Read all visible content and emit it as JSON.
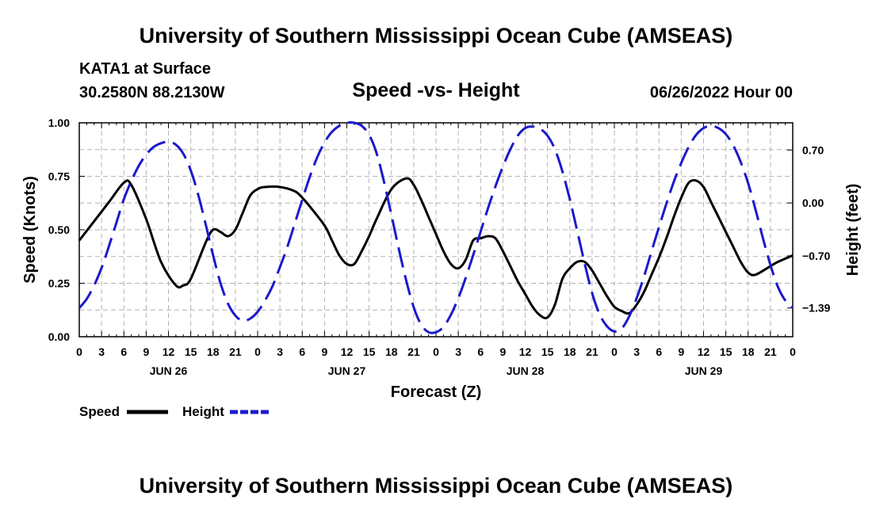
{
  "page": {
    "title_top": "University of Southern Mississippi Ocean Cube (AMSEAS)",
    "title_bottom": "University of Southern Mississippi Ocean Cube (AMSEAS)",
    "station": "KATA1 at Surface",
    "coords": "30.2580N  88.2130W",
    "datetime": "06/26/2022 Hour 00"
  },
  "chart_data": {
    "type": "line",
    "title": "Speed -vs- Height",
    "xlabel": "Forecast (Z)",
    "ylabel": "Speed (Knots)",
    "y2label": "Height (feet)",
    "x_unit": "hours from 06/26/2022 00Z",
    "xlim": [
      0,
      96
    ],
    "ylim": [
      0,
      1
    ],
    "y2lim": [
      -1.77,
      1.06
    ],
    "x_tick_values": [
      0,
      3,
      6,
      9,
      12,
      15,
      18,
      21,
      24,
      27,
      30,
      33,
      36,
      39,
      42,
      45,
      48,
      51,
      54,
      57,
      60,
      63,
      66,
      69,
      72,
      75,
      78,
      81,
      84,
      87,
      90,
      93,
      96
    ],
    "x_tick_labels": [
      "0",
      "3",
      "6",
      "9",
      "12",
      "15",
      "18",
      "21",
      "0",
      "3",
      "6",
      "9",
      "12",
      "15",
      "18",
      "21",
      "0",
      "3",
      "6",
      "9",
      "12",
      "15",
      "18",
      "21",
      "0",
      "3",
      "6",
      "9",
      "12",
      "15",
      "18",
      "21",
      "0"
    ],
    "date_labels": [
      {
        "x": 12,
        "label": "JUN 26"
      },
      {
        "x": 36,
        "label": "JUN 27"
      },
      {
        "x": 60,
        "label": "JUN 28"
      },
      {
        "x": 84,
        "label": "JUN 29"
      }
    ],
    "y_ticks": [
      0,
      0.25,
      0.5,
      0.75,
      1.0
    ],
    "y_tick_labels": [
      "0.00",
      "0.25",
      "0.50",
      "0.75",
      "1.00"
    ],
    "y2_ticks": [
      0.7,
      0.0,
      -0.7,
      -1.39
    ],
    "y2_tick_labels": [
      "0.70",
      "0.00",
      "−0.70",
      "−1.39"
    ],
    "grid": true,
    "legend_position": "bottom-left",
    "series": [
      {
        "name": "Speed",
        "axis": "left",
        "color": "#000000",
        "style": "solid",
        "x": [
          0,
          2,
          4,
          6,
          7,
          9,
          11,
          13,
          14,
          15,
          17,
          18,
          19,
          20,
          21,
          22,
          23,
          24,
          25,
          27,
          29,
          30,
          31,
          33,
          34,
          35,
          36,
          37,
          38,
          39,
          40,
          42,
          44,
          45,
          46,
          47,
          48,
          49,
          50,
          51,
          52,
          53,
          54,
          55,
          56,
          57,
          58,
          59,
          60,
          61,
          62,
          63,
          64,
          65,
          66,
          67,
          68,
          69,
          70,
          71,
          72,
          73,
          74,
          75,
          76,
          77,
          78,
          79,
          80,
          81,
          82,
          83,
          84,
          85,
          86,
          87,
          88,
          89,
          90,
          91,
          93,
          94,
          96
        ],
        "values": [
          0.45,
          0.54,
          0.63,
          0.72,
          0.71,
          0.55,
          0.35,
          0.24,
          0.24,
          0.27,
          0.44,
          0.5,
          0.49,
          0.47,
          0.5,
          0.58,
          0.66,
          0.69,
          0.7,
          0.7,
          0.68,
          0.65,
          0.61,
          0.52,
          0.45,
          0.38,
          0.34,
          0.34,
          0.4,
          0.47,
          0.55,
          0.69,
          0.74,
          0.71,
          0.64,
          0.56,
          0.48,
          0.4,
          0.34,
          0.32,
          0.36,
          0.45,
          0.46,
          0.47,
          0.46,
          0.4,
          0.33,
          0.26,
          0.2,
          0.14,
          0.1,
          0.09,
          0.15,
          0.27,
          0.32,
          0.35,
          0.35,
          0.31,
          0.25,
          0.19,
          0.14,
          0.12,
          0.11,
          0.15,
          0.21,
          0.29,
          0.37,
          0.46,
          0.56,
          0.65,
          0.72,
          0.73,
          0.7,
          0.63,
          0.56,
          0.49,
          0.42,
          0.35,
          0.3,
          0.29,
          0.33,
          0.35,
          0.38
        ]
      },
      {
        "name": "Height",
        "axis": "right",
        "color": "#1a1acc",
        "style": "dashed",
        "x": [
          0,
          1,
          2,
          3,
          4,
          5,
          6,
          7,
          8,
          9,
          10,
          11,
          12,
          13,
          14,
          15,
          16,
          17,
          18,
          19,
          20,
          21,
          22,
          23,
          24,
          25,
          26,
          27,
          28,
          29,
          30,
          31,
          32,
          33,
          34,
          35,
          36,
          37,
          38,
          39,
          40,
          41,
          42,
          43,
          44,
          45,
          46,
          47,
          48,
          49,
          50,
          51,
          52,
          53,
          54,
          55,
          56,
          57,
          58,
          59,
          60,
          61,
          62,
          63,
          64,
          65,
          66,
          67,
          68,
          69,
          70,
          71,
          72,
          73,
          74,
          75,
          76,
          77,
          78,
          79,
          80,
          81,
          82,
          83,
          84,
          85,
          86,
          87,
          88,
          89,
          90,
          91,
          92,
          93,
          94,
          95,
          96
        ],
        "values": [
          -1.39,
          -1.27,
          -1.09,
          -0.86,
          -0.57,
          -0.26,
          0.05,
          0.29,
          0.49,
          0.64,
          0.74,
          0.79,
          0.81,
          0.77,
          0.65,
          0.43,
          0.11,
          -0.28,
          -0.69,
          -1.06,
          -1.33,
          -1.49,
          -1.56,
          -1.53,
          -1.44,
          -1.29,
          -1.1,
          -0.85,
          -0.58,
          -0.27,
          0.04,
          0.34,
          0.6,
          0.8,
          0.94,
          1.02,
          1.06,
          1.06,
          1.02,
          0.9,
          0.66,
          0.28,
          -0.16,
          -0.61,
          -1.03,
          -1.38,
          -1.61,
          -1.71,
          -1.71,
          -1.64,
          -1.48,
          -1.26,
          -0.99,
          -0.69,
          -0.38,
          -0.07,
          0.22,
          0.48,
          0.71,
          0.89,
          0.99,
          1.01,
          0.98,
          0.89,
          0.71,
          0.42,
          0.05,
          -0.37,
          -0.8,
          -1.19,
          -1.47,
          -1.63,
          -1.7,
          -1.66,
          -1.5,
          -1.26,
          -0.97,
          -0.64,
          -0.32,
          -0.01,
          0.28,
          0.53,
          0.74,
          0.9,
          0.99,
          1.02,
          0.99,
          0.91,
          0.76,
          0.54,
          0.26,
          -0.09,
          -0.47,
          -0.82,
          -1.11,
          -1.29,
          -1.39
        ]
      }
    ]
  }
}
